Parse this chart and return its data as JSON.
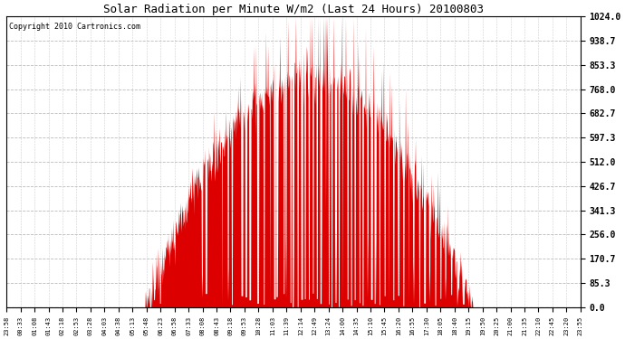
{
  "title": "Solar Radiation per Minute W/m2 (Last 24 Hours) 20100803",
  "copyright": "Copyright 2010 Cartronics.com",
  "yticks": [
    0.0,
    85.3,
    170.7,
    256.0,
    341.3,
    426.7,
    512.0,
    597.3,
    682.7,
    768.0,
    853.3,
    938.7,
    1024.0
  ],
  "ymax": 1024.0,
  "fill_color": "#dd0000",
  "line_color": "#cc0000",
  "bg_color": "#ffffff",
  "plot_bg_color": "#ffffff",
  "grid_color": "#bbbbbb",
  "dashed_line_color": "#ff0000",
  "x_tick_labels": [
    "23:58",
    "00:33",
    "01:08",
    "01:43",
    "02:18",
    "02:53",
    "03:28",
    "04:03",
    "04:38",
    "05:13",
    "05:48",
    "06:23",
    "06:58",
    "07:33",
    "08:08",
    "08:43",
    "09:18",
    "09:53",
    "10:28",
    "11:03",
    "11:39",
    "12:14",
    "12:49",
    "13:24",
    "14:00",
    "14:35",
    "15:10",
    "15:45",
    "16:20",
    "16:55",
    "17:30",
    "18:05",
    "18:40",
    "19:15",
    "19:50",
    "20:25",
    "21:00",
    "21:35",
    "22:10",
    "22:45",
    "23:20",
    "23:55"
  ],
  "num_points": 1440,
  "title_fontsize": 9,
  "copyright_fontsize": 6,
  "ytick_fontsize": 7,
  "xtick_fontsize": 5
}
